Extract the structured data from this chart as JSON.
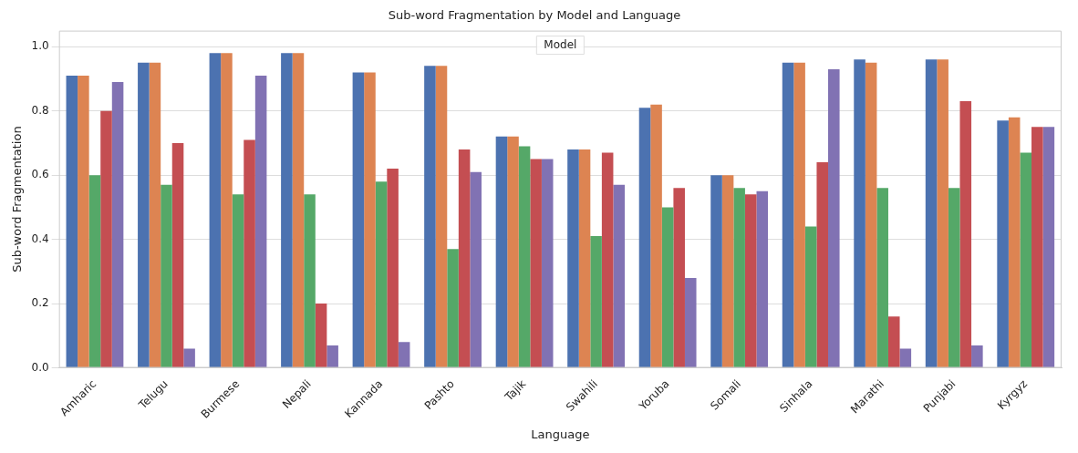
{
  "chart_data": {
    "type": "bar",
    "title": "Sub-word Fragmentation by Model and Language",
    "xlabel": "Language",
    "ylabel": "Sub-word Fragmentation",
    "legend_title": "Model",
    "grid": "y",
    "categories": [
      "Amharic",
      "Telugu",
      "Burmese",
      "Nepali",
      "Kannada",
      "Pashto",
      "Tajik",
      "Swahili",
      "Yoruba",
      "Somali",
      "Sinhala",
      "Marathi",
      "Punjabi",
      "Kyrgyz"
    ],
    "ylim": [
      0,
      1.05
    ],
    "yticks": [
      {
        "value": 0,
        "label": "0.0"
      },
      0.2,
      0.4,
      0.6,
      0.8,
      {
        "value": 1,
        "label": "1.0"
      }
    ],
    "series": [
      {
        "color": "#4c72b0",
        "values": [
          0.91,
          0.95,
          0.98,
          0.98,
          0.92,
          0.94,
          0.72,
          0.68,
          0.81,
          0.6,
          0.95,
          0.96,
          0.96,
          0.77
        ]
      },
      {
        "color": "#dd8452",
        "values": [
          0.91,
          0.95,
          0.98,
          0.98,
          0.92,
          0.94,
          0.72,
          0.68,
          0.82,
          0.6,
          0.95,
          0.95,
          0.96,
          0.78
        ]
      },
      {
        "color": "#55a868",
        "values": [
          0.6,
          0.57,
          0.54,
          0.54,
          0.58,
          0.37,
          0.69,
          0.41,
          0.5,
          0.56,
          0.44,
          0.56,
          0.56,
          0.67
        ]
      },
      {
        "color": "#c44e52",
        "values": [
          0.8,
          0.7,
          0.71,
          0.2,
          0.62,
          0.68,
          0.65,
          0.67,
          0.56,
          0.54,
          0.64,
          0.16,
          0.83,
          0.75
        ]
      },
      {
        "color": "#8172b3",
        "values": [
          0.89,
          0.06,
          0.91,
          0.07,
          0.08,
          0.61,
          0.65,
          0.57,
          0.28,
          0.55,
          0.93,
          0.06,
          0.07,
          0.75
        ]
      }
    ]
  }
}
